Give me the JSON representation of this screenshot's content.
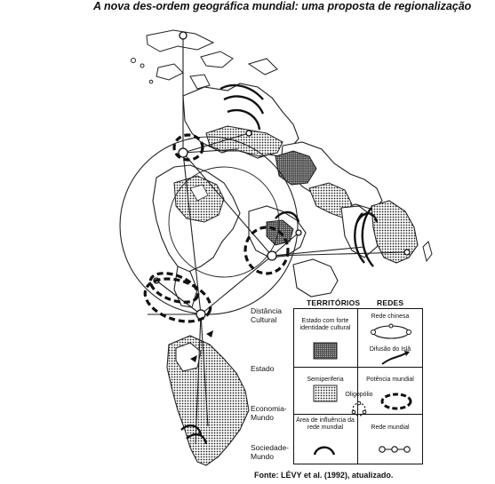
{
  "title": "A nova des-ordem geográfica mundial: uma proposta de regionalização",
  "legend": {
    "col_territorios": "TERRITÓRIOS",
    "col_redes": "REDES",
    "rows": [
      {
        "label_line1": "Distância",
        "label_line2": "Cultural"
      },
      {
        "label_line1": "Estado",
        "label_line2": ""
      },
      {
        "label_line1": "Economia-",
        "label_line2": "Mundo"
      },
      {
        "label_line1": "Sociedade-",
        "label_line2": "Mundo"
      }
    ],
    "territorios": [
      "Estado com forte identidade cultural",
      "Semiperiferia",
      "Área de influência da rede mundial"
    ],
    "redes": [
      "Rede chinesa",
      "Difusão do Islã",
      "Potência mundial",
      "Oligopólio",
      "Rede mundial"
    ]
  },
  "source": "Fonte: LÉVY et al. (1992), atualizado."
}
